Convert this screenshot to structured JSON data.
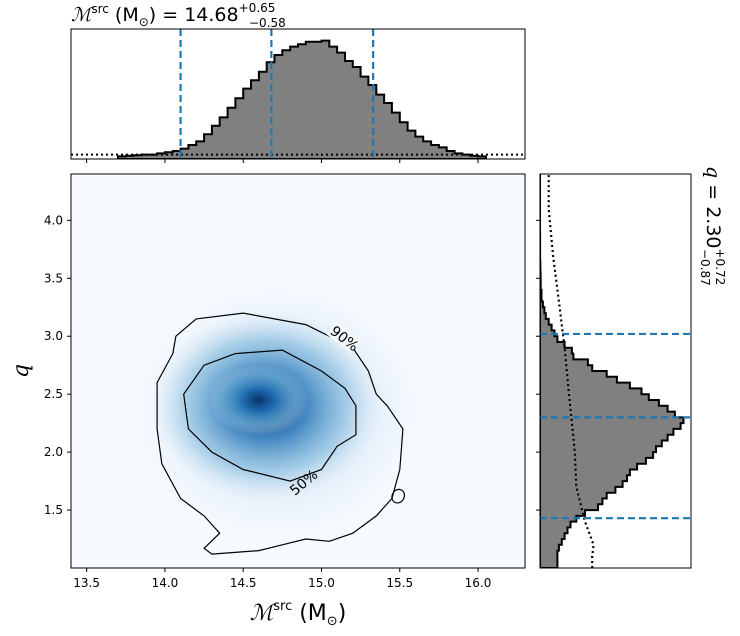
{
  "chart_data": [
    {
      "type": "heatmap",
      "panel": "joint",
      "xlabel_italic": "ℳ",
      "xlabel_sup": "src",
      "xlabel_unit": "(M",
      "xlabel_unit_sub": "⊙",
      "xlabel_unit_close": ")",
      "ylabel": "q",
      "xlim": [
        13.4,
        16.3
      ],
      "ylim": [
        1.0,
        4.4
      ],
      "xticks": [
        "13.5",
        "14.0",
        "14.5",
        "15.0",
        "15.5",
        "16.0"
      ],
      "yticks": [
        "1.5",
        "2.0",
        "2.5",
        "3.0",
        "3.5",
        "4.0"
      ],
      "colormap": "Blues",
      "density_peak": {
        "x": 14.6,
        "y": 2.45
      },
      "contours": [
        {
          "label": "90%",
          "level": 0.9
        },
        {
          "label": "50%",
          "level": 0.5
        }
      ],
      "contour_points": {
        "c90": [
          [
            14.3,
            1.12
          ],
          [
            14.6,
            1.15
          ],
          [
            14.75,
            1.2
          ],
          [
            14.9,
            1.25
          ],
          [
            15.05,
            1.23
          ],
          [
            15.2,
            1.3
          ],
          [
            15.35,
            1.45
          ],
          [
            15.45,
            1.6
          ],
          [
            15.5,
            1.85
          ],
          [
            15.52,
            2.2
          ],
          [
            15.42,
            2.4
          ],
          [
            15.35,
            2.5
          ],
          [
            15.3,
            2.7
          ],
          [
            15.2,
            2.9
          ],
          [
            14.9,
            3.1
          ],
          [
            14.5,
            3.2
          ],
          [
            14.2,
            3.15
          ],
          [
            14.07,
            3.0
          ],
          [
            14.05,
            2.85
          ],
          [
            13.95,
            2.6
          ],
          [
            13.95,
            2.2
          ],
          [
            13.98,
            1.9
          ],
          [
            14.1,
            1.6
          ],
          [
            14.25,
            1.45
          ],
          [
            14.35,
            1.3
          ],
          [
            14.25,
            1.17
          ]
        ],
        "c50": [
          [
            14.5,
            1.85
          ],
          [
            14.8,
            1.75
          ],
          [
            15.0,
            1.85
          ],
          [
            15.1,
            2.05
          ],
          [
            15.22,
            2.15
          ],
          [
            15.22,
            2.4
          ],
          [
            15.15,
            2.55
          ],
          [
            15.0,
            2.7
          ],
          [
            14.75,
            2.88
          ],
          [
            14.45,
            2.85
          ],
          [
            14.25,
            2.75
          ],
          [
            14.12,
            2.5
          ],
          [
            14.15,
            2.2
          ],
          [
            14.3,
            2.0
          ]
        ],
        "island": {
          "x": 15.49,
          "y": 1.62
        }
      }
    },
    {
      "type": "bar",
      "panel": "x-marginal (histogram)",
      "title_lhs_italic": "ℳ",
      "title_lhs_sup": "src",
      "title_lhs_unit": "(M",
      "title_lhs_unit_sub": "⊙",
      "title_lhs_close": ")",
      "title_equals": "=",
      "median": 14.68,
      "upper_err": 0.65,
      "lower_err": 0.58,
      "median_text": "14.68",
      "upper_text": "+0.65",
      "lower_text": "−0.58",
      "xlim": [
        13.4,
        16.3
      ],
      "bin_start": 13.7,
      "bin_width": 0.05,
      "values": [
        0.005,
        0.01,
        0.015,
        0.02,
        0.02,
        0.03,
        0.04,
        0.05,
        0.07,
        0.1,
        0.13,
        0.19,
        0.26,
        0.33,
        0.41,
        0.49,
        0.57,
        0.64,
        0.71,
        0.79,
        0.85,
        0.89,
        0.92,
        0.94,
        0.96,
        0.96,
        0.97,
        0.92,
        0.87,
        0.8,
        0.75,
        0.67,
        0.6,
        0.52,
        0.45,
        0.37,
        0.29,
        0.22,
        0.17,
        0.13,
        0.1,
        0.08,
        0.05,
        0.03,
        0.02,
        0.01,
        0.005
      ],
      "prior_level": 0.02,
      "quantile_lines": [
        14.1,
        14.68,
        15.33
      ]
    },
    {
      "type": "bar",
      "panel": "y-marginal (histogram, horizontal)",
      "title_italic": "q",
      "title_equals": "=",
      "median": 2.3,
      "upper_err": 0.72,
      "lower_err": 0.87,
      "median_text": "2.30",
      "upper_text": "+0.72",
      "lower_text": "−0.87",
      "ylim": [
        1.0,
        4.4
      ],
      "bin_start": 1.0,
      "bin_width": 0.05,
      "values": [
        0.12,
        0.12,
        0.12,
        0.13,
        0.15,
        0.17,
        0.19,
        0.21,
        0.25,
        0.31,
        0.4,
        0.43,
        0.46,
        0.52,
        0.57,
        0.6,
        0.62,
        0.67,
        0.73,
        0.78,
        0.8,
        0.84,
        0.88,
        0.92,
        0.97,
        0.99,
        0.93,
        0.88,
        0.82,
        0.75,
        0.7,
        0.62,
        0.53,
        0.46,
        0.36,
        0.33,
        0.23,
        0.22,
        0.17,
        0.12,
        0.1,
        0.08,
        0.06,
        0.04,
        0.03,
        0.02,
        0.01,
        0.01,
        0.005,
        0.005,
        0.004,
        0.003,
        0.002,
        0.001,
        0.001,
        0.001,
        0.001,
        0.001,
        0,
        0,
        0,
        0,
        0,
        0,
        0,
        0,
        0,
        0
      ],
      "prior": [
        [
          0.36,
          1.0
        ],
        [
          0.36,
          1.1
        ],
        [
          0.37,
          1.2
        ],
        [
          0.31,
          1.4
        ],
        [
          0.25,
          1.7
        ],
        [
          0.24,
          2.0
        ],
        [
          0.2,
          2.5
        ],
        [
          0.17,
          2.9
        ],
        [
          0.13,
          3.3
        ],
        [
          0.09,
          3.7
        ],
        [
          0.06,
          4.1
        ],
        [
          0.06,
          4.4
        ]
      ],
      "quantile_lines": [
        1.43,
        2.3,
        3.02
      ]
    }
  ]
}
